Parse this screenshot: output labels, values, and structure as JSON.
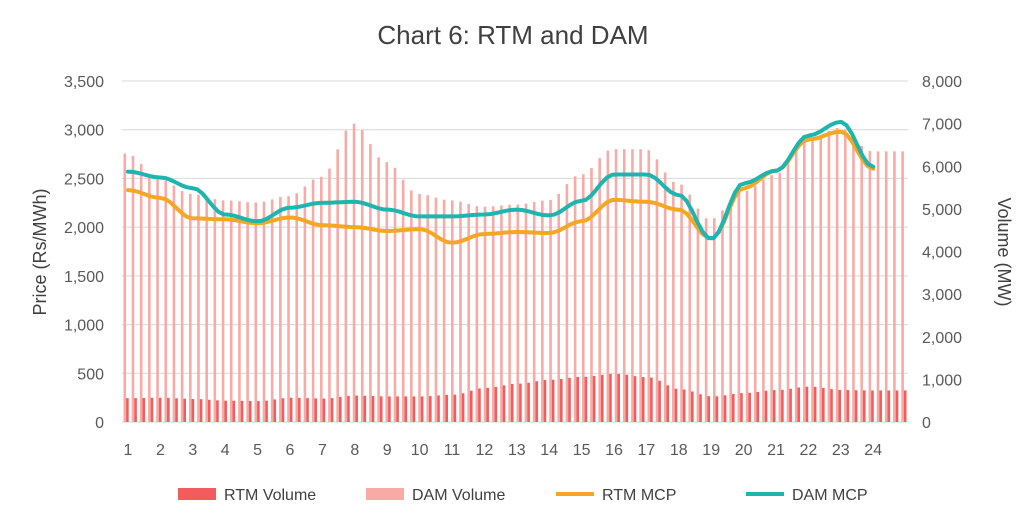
{
  "chart_data": {
    "type": "bar",
    "title": "Chart 6: RTM and DAM",
    "xlabel": "",
    "ylabel": "Price (Rs/MWh)",
    "y2label": "Volume (MW)",
    "ylim": [
      0,
      3500
    ],
    "y2lim": [
      0,
      8000
    ],
    "yticks": [
      "0",
      "500",
      "1,000",
      "1,500",
      "2,000",
      "2,500",
      "3,000",
      "3,500"
    ],
    "y2ticks": [
      "0",
      "1,000",
      "2,000",
      "3,000",
      "4,000",
      "5,000",
      "6,000",
      "7,000",
      "8,000"
    ],
    "x_tick_labels": [
      "1",
      "2",
      "3",
      "4",
      "5",
      "6",
      "7",
      "8",
      "9",
      "10",
      "11",
      "12",
      "13",
      "14",
      "15",
      "16",
      "17",
      "18",
      "19",
      "20",
      "21",
      "22",
      "23",
      "24"
    ],
    "grid": "horizontal",
    "legend_position": "bottom",
    "colors": {
      "rtm_volume": "#f25c5c",
      "dam_volume": "#f7aaa6",
      "rtm_mcp": "#f5a623",
      "dam_mcp": "#1db5ad"
    },
    "hourly_points": {
      "hour": [
        1,
        2,
        3,
        4,
        5,
        6,
        7,
        8,
        9,
        10,
        11,
        12,
        13,
        14,
        15,
        16,
        17,
        18,
        19,
        20,
        21,
        22,
        23,
        24
      ],
      "dam_volume_mw": [
        6300,
        5700,
        5350,
        5200,
        5150,
        5300,
        5750,
        7000,
        6100,
        5350,
        5200,
        5050,
        5100,
        5200,
        5800,
        6400,
        6400,
        5600,
        4750,
        5400,
        5800,
        6600,
        6900,
        6350
      ],
      "rtm_volume_mw": [
        560,
        570,
        540,
        500,
        490,
        570,
        550,
        620,
        600,
        600,
        640,
        800,
        900,
        990,
        1060,
        1130,
        1050,
        770,
        600,
        680,
        750,
        830,
        750,
        740
      ]
    },
    "series": [
      {
        "name": "RTM Volume",
        "kind": "bar",
        "axis": "right"
      },
      {
        "name": "DAM Volume",
        "kind": "bar",
        "axis": "right"
      },
      {
        "name": "RTM MCP",
        "kind": "line",
        "axis": "left",
        "values": [
          2380,
          2300,
          2090,
          2080,
          2040,
          2100,
          2020,
          2000,
          1960,
          1980,
          1840,
          1930,
          1950,
          1940,
          2060,
          2280,
          2260,
          2180,
          1880,
          2400,
          2580,
          2900,
          2980,
          2600
        ]
      },
      {
        "name": "DAM MCP",
        "kind": "line",
        "axis": "left",
        "values": [
          2570,
          2510,
          2400,
          2130,
          2060,
          2200,
          2250,
          2260,
          2180,
          2110,
          2110,
          2130,
          2180,
          2120,
          2270,
          2540,
          2540,
          2330,
          1880,
          2450,
          2580,
          2940,
          3080,
          2620
        ]
      }
    ]
  }
}
